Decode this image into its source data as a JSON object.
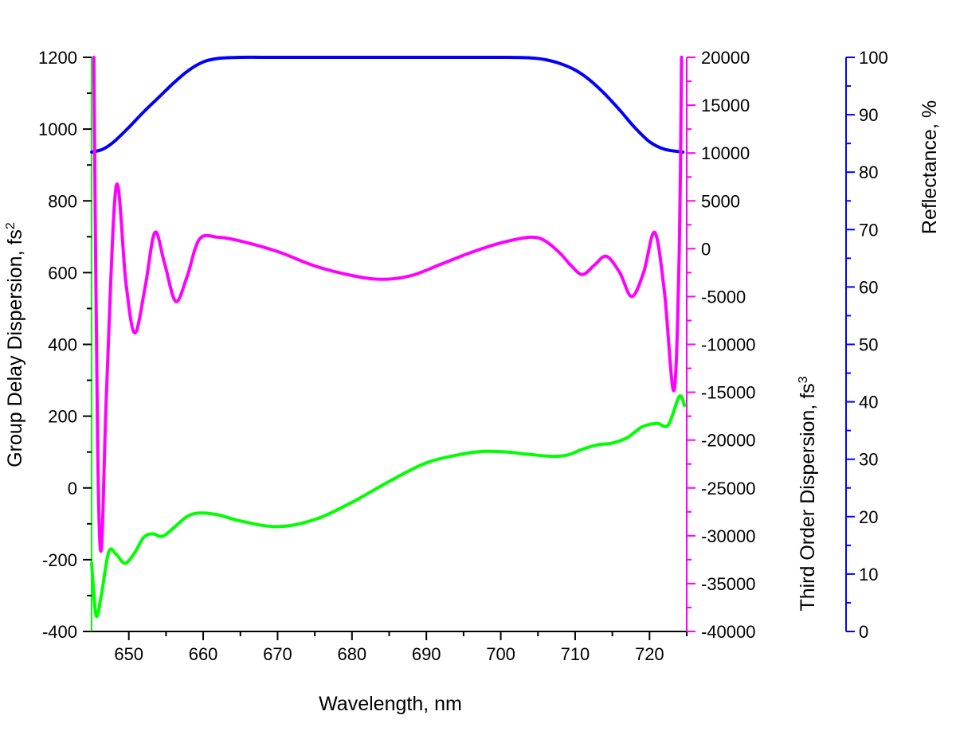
{
  "chart_data": {
    "type": "line",
    "xlabel": "Wavelength, nm",
    "x_ticks": [
      650,
      660,
      670,
      680,
      690,
      700,
      710,
      720
    ],
    "xlim": [
      645,
      725
    ],
    "axes": {
      "gdd": {
        "label": "Group Delay Dispersion, fs",
        "unit_sup": "2",
        "color": "#00ff00",
        "ylim": [
          -400,
          1200
        ],
        "ticks": [
          -400,
          -200,
          0,
          200,
          400,
          600,
          800,
          1000,
          1200
        ]
      },
      "tod": {
        "label": "Third Order Dispersion, fs",
        "unit_sup": "3",
        "color": "#ff00ff",
        "ylim": [
          -40000,
          20000
        ],
        "ticks": [
          -40000,
          -35000,
          -30000,
          -25000,
          -20000,
          -15000,
          -10000,
          -5000,
          0,
          5000,
          10000,
          15000,
          20000
        ]
      },
      "reflectance": {
        "label": "Reflectance, %",
        "color": "#0000ff",
        "ylim": [
          0,
          100
        ],
        "ticks": [
          0,
          10,
          20,
          30,
          40,
          50,
          60,
          70,
          80,
          90,
          100
        ]
      }
    },
    "series": [
      {
        "axis": "reflectance",
        "color": "#0000ff",
        "x": [
          645.0,
          646.5,
          648,
          650,
          652,
          654,
          656,
          658,
          660,
          662,
          665,
          670,
          680,
          690,
          700,
          704,
          706,
          708,
          710,
          712,
          714,
          716,
          718,
          720,
          722,
          724.5
        ],
        "y": [
          83.5,
          84.0,
          85.3,
          87.8,
          90.5,
          93.0,
          95.5,
          97.7,
          99.2,
          99.8,
          100,
          100,
          100,
          100,
          100,
          99.9,
          99.6,
          98.9,
          97.8,
          96.0,
          93.6,
          90.8,
          87.8,
          85.3,
          84.0,
          83.5
        ]
      },
      {
        "axis": "tod",
        "color": "#ff00ff",
        "x": [
          645.3,
          645.8,
          646.3,
          647.0,
          648.3,
          649.6,
          650.8,
          652.2,
          653.5,
          654.8,
          656.3,
          657.8,
          659.5,
          662,
          665,
          670,
          675,
          680,
          684,
          688,
          692,
          696,
          700,
          704,
          706,
          708,
          709.5,
          711,
          712.6,
          714.2,
          716,
          717.6,
          719.2,
          720.7,
          722,
          723.3,
          724.0,
          724.3
        ],
        "y": [
          20000,
          -20000,
          -31500,
          -15000,
          6500,
          -3500,
          -8800,
          -4000,
          1700,
          -1500,
          -5500,
          -3000,
          1000,
          1200,
          800,
          -300,
          -1800,
          -2800,
          -3200,
          -2800,
          -1600,
          -400,
          600,
          1200,
          800,
          -500,
          -1800,
          -2700,
          -1700,
          -800,
          -2500,
          -5000,
          -2500,
          1700,
          -4500,
          -14800,
          0,
          20000
        ]
      },
      {
        "axis": "gdd",
        "color": "#00ff00",
        "x": [
          645.0,
          645.6,
          646.3,
          647.3,
          648.3,
          649.5,
          650.8,
          652.0,
          653.2,
          654.5,
          656.0,
          657.8,
          659.5,
          662,
          665,
          670,
          675,
          680,
          685,
          690,
          695,
          698,
          701,
          704,
          707,
          709,
          711,
          713,
          715,
          717,
          719,
          721,
          722.5,
          724.0,
          724.7
        ],
        "y": [
          -210,
          -355,
          -300,
          -178,
          -185,
          -210,
          -180,
          -138,
          -128,
          -135,
          -112,
          -80,
          -70,
          -75,
          -92,
          -108,
          -88,
          -40,
          18,
          70,
          95,
          102,
          100,
          93,
          88,
          92,
          108,
          120,
          125,
          140,
          170,
          180,
          175,
          255,
          230
        ]
      }
    ]
  }
}
